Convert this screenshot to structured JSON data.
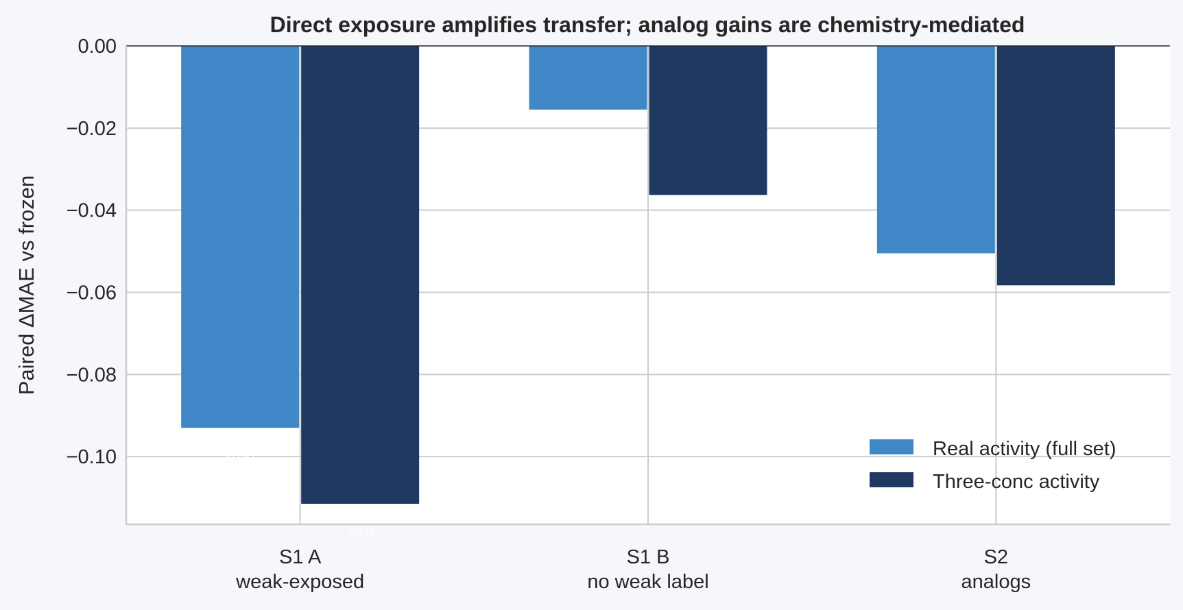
{
  "chart_data": {
    "type": "bar",
    "title": "Direct exposure amplifies transfer; analog gains are chemistry-mediated",
    "xlabel": "",
    "ylabel": "Paired ΔMAE vs frozen",
    "ylim": [
      -0.1165,
      0.0
    ],
    "yticks": [
      0.0,
      -0.02,
      -0.04,
      -0.06,
      -0.08,
      -0.1
    ],
    "ytick_labels": [
      "0.00",
      "−0.02",
      "−0.04",
      "−0.06",
      "−0.08",
      "−0.10"
    ],
    "categories": [
      {
        "line1": "S1 A",
        "line2": "weak-exposed"
      },
      {
        "line1": "S1 B",
        "line2": "no weak label"
      },
      {
        "line1": "S2",
        "line2": "analogs"
      }
    ],
    "series": [
      {
        "name": "Real activity (full set)",
        "color": "#3f87c6",
        "values": [
          -0.093,
          -0.0155,
          -0.0505
        ],
        "labels": [
          "-0.093",
          "",
          ""
        ]
      },
      {
        "name": "Three-conc activity",
        "color": "#1f3960",
        "values": [
          -0.1115,
          -0.0363,
          -0.0583
        ],
        "labels": [
          "-0.111",
          "",
          ""
        ]
      }
    ],
    "grid": true,
    "legend_position": "lower-right"
  }
}
